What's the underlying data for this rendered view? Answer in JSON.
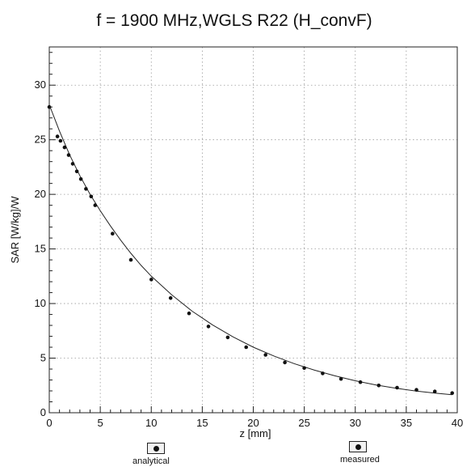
{
  "chart_data": {
    "type": "line",
    "title": "f = 1900 MHz,WGLS R22 (H_convF)",
    "xlabel": "z [mm]",
    "ylabel": "SAR [W/kg]/W",
    "xlim": [
      0,
      40
    ],
    "ylim": [
      0,
      33.5
    ],
    "x_ticks": [
      0,
      5,
      10,
      15,
      20,
      25,
      30,
      35,
      40
    ],
    "y_ticks": [
      0,
      5,
      10,
      15,
      20,
      25,
      30
    ],
    "grid": true,
    "legend_position": "bottom",
    "series": [
      {
        "name": "analytical",
        "style": "line",
        "x": [
          0,
          0.5,
          1,
          1.5,
          2,
          3,
          4,
          5,
          6,
          7,
          8,
          9,
          10,
          12,
          14,
          16,
          18,
          20,
          22,
          24,
          26,
          28,
          30,
          32,
          34,
          36,
          38,
          39.5
        ],
        "y": [
          28.2,
          27.0,
          25.8,
          24.7,
          23.6,
          21.7,
          20.0,
          18.5,
          17.1,
          15.8,
          14.6,
          13.5,
          12.5,
          10.8,
          9.3,
          8.05,
          6.95,
          6.0,
          5.2,
          4.5,
          3.9,
          3.38,
          2.93,
          2.55,
          2.24,
          1.98,
          1.78,
          1.65
        ]
      },
      {
        "name": "measured",
        "style": "markers",
        "x": [
          0,
          0.8,
          1.1,
          1.5,
          1.9,
          2.3,
          2.7,
          3.1,
          3.6,
          4.1,
          4.5,
          6.2,
          8.0,
          10.0,
          11.9,
          13.7,
          15.6,
          17.5,
          19.3,
          21.2,
          23.1,
          25.0,
          26.8,
          28.6,
          30.5,
          32.3,
          34.1,
          36.0,
          37.8,
          39.5
        ],
        "y": [
          28.0,
          25.3,
          24.9,
          24.3,
          23.6,
          22.8,
          22.1,
          21.4,
          20.5,
          19.8,
          19.0,
          16.4,
          14.0,
          12.2,
          10.5,
          9.1,
          7.9,
          6.9,
          6.0,
          5.3,
          4.6,
          4.1,
          3.6,
          3.1,
          2.8,
          2.5,
          2.3,
          2.1,
          1.95,
          1.8
        ]
      }
    ]
  }
}
